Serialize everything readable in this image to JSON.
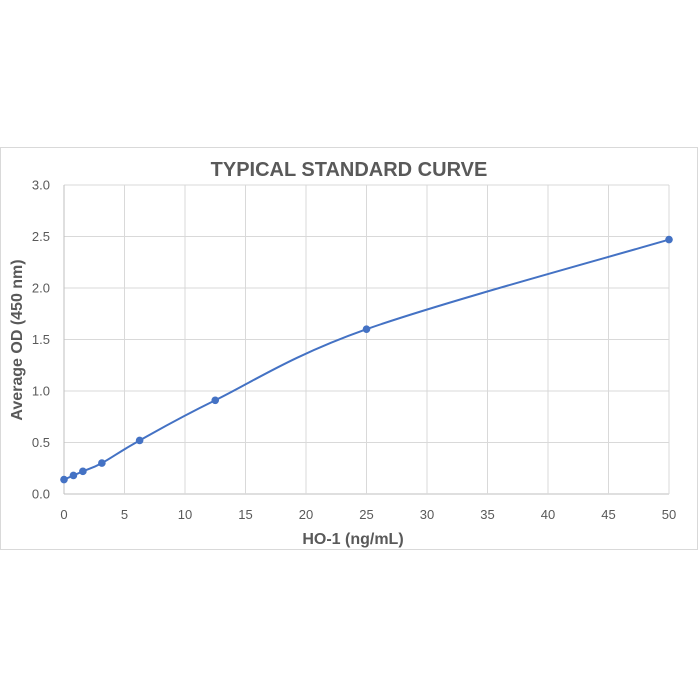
{
  "chart_data": {
    "type": "scatter",
    "title": "TYPICAL STANDARD CURVE",
    "xlabel": "HO-1 (ng/mL)",
    "ylabel": "Average OD (450 nm)",
    "xlim": [
      0,
      50
    ],
    "ylim": [
      0,
      3.0
    ],
    "x_ticks": [
      "0",
      "5",
      "10",
      "15",
      "20",
      "25",
      "30",
      "35",
      "40",
      "45",
      "50"
    ],
    "y_ticks": [
      "0.0",
      "0.5",
      "1.0",
      "1.5",
      "2.0",
      "2.5",
      "3.0"
    ],
    "grid": true,
    "legend": "none",
    "smooth_line": true,
    "series": [
      {
        "x": [
          0,
          0.78,
          1.56,
          3.13,
          6.25,
          12.5,
          25,
          50
        ],
        "y": [
          0.14,
          0.18,
          0.22,
          0.3,
          0.52,
          0.91,
          1.6,
          2.47
        ]
      }
    ],
    "color": "#4472c4"
  }
}
